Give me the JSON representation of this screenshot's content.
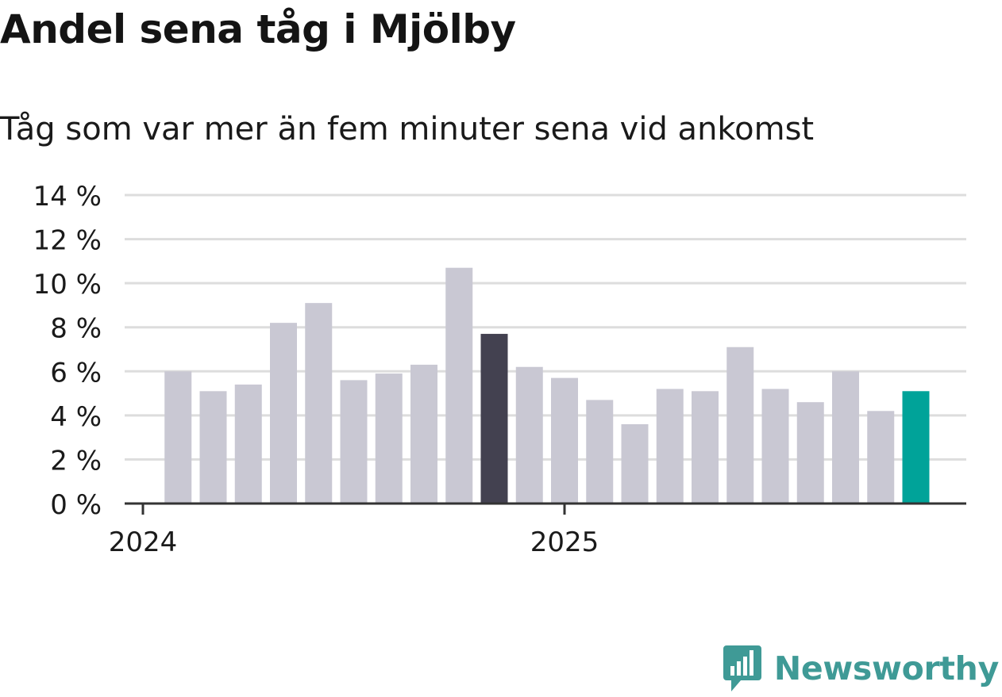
{
  "title": "Andel sena tåg i Mjölby",
  "subtitle": "Tåg som var mer än fem minuter sena vid ankomst",
  "brand": {
    "name": "Newsworthy",
    "color": "#3f9a96",
    "icon": "newsworthy-logo-icon"
  },
  "colors": {
    "bar_default": "#c9c8d3",
    "bar_highlight_dark": "#434150",
    "bar_highlight_accent": "#00a399",
    "grid": "#dddddd",
    "axis": "#333333",
    "text": "#1a1a1a"
  },
  "chart_data": {
    "type": "bar",
    "title": "Andel sena tåg i Mjölby",
    "subtitle": "Tåg som var mer än fem minuter sena vid ankomst",
    "x": [
      "2024-01",
      "2024-02",
      "2024-03",
      "2024-04",
      "2024-05",
      "2024-06",
      "2024-07",
      "2024-08",
      "2024-09",
      "2024-10",
      "2024-11",
      "2024-12",
      "2025-01",
      "2025-02",
      "2025-03",
      "2025-04",
      "2025-05",
      "2025-06",
      "2025-07",
      "2025-08",
      "2025-09",
      "2025-10",
      "2025-11",
      "2025-12"
    ],
    "values": [
      null,
      6.0,
      5.1,
      5.4,
      8.2,
      9.1,
      5.6,
      5.9,
      6.3,
      10.7,
      7.7,
      6.2,
      5.7,
      4.7,
      3.6,
      5.2,
      5.1,
      7.1,
      5.2,
      4.6,
      6.0,
      4.2,
      5.1,
      null
    ],
    "highlights": {
      "2024-11": "bar_highlight_dark",
      "2025-11": "bar_highlight_accent"
    },
    "x_tick_labels": [
      {
        "x": "2024-01",
        "label": "2024"
      },
      {
        "x": "2025-01",
        "label": "2025"
      }
    ],
    "y_ticks": [
      0,
      2,
      4,
      6,
      8,
      10,
      12,
      14
    ],
    "y_tick_labels": [
      "0 %",
      "2 %",
      "4 %",
      "6 %",
      "8 %",
      "10 %",
      "12 %",
      "14 %"
    ],
    "ylim": [
      0,
      14
    ],
    "xlabel": "",
    "ylabel": "",
    "grid": true,
    "legend": "none"
  }
}
